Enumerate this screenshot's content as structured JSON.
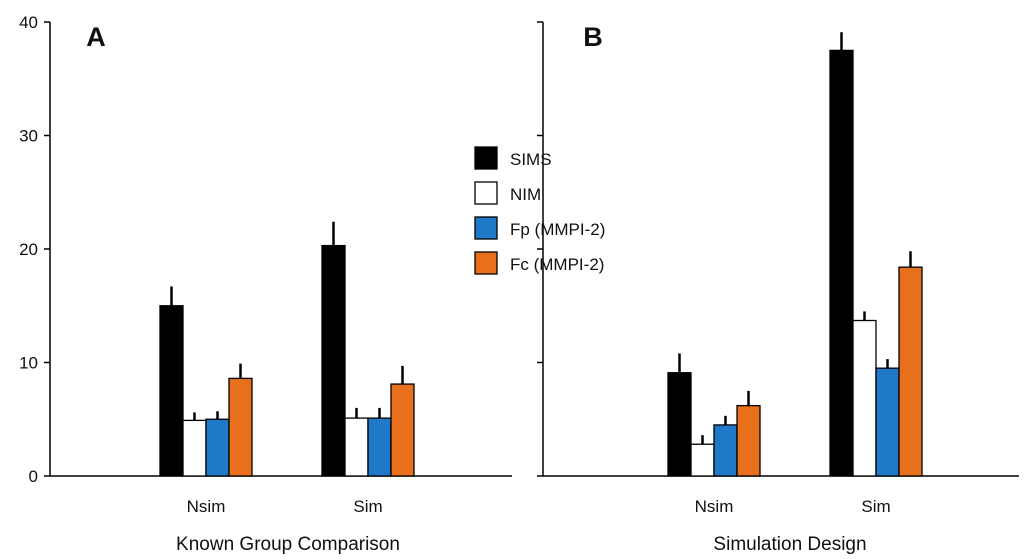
{
  "legend": {
    "items": [
      {
        "label": "SIMS",
        "color": "#000000"
      },
      {
        "label": "NIM",
        "color": "#ffffff"
      },
      {
        "label": "Fp (MMPI-2)",
        "color": "#1f78c8"
      },
      {
        "label": "Fc (MMPI-2)",
        "color": "#e8701c"
      }
    ]
  },
  "chart_data": [
    {
      "type": "bar",
      "panel_letter": "A",
      "xlabel": "Known Group Comparison",
      "ylabel": "",
      "ylim": [
        0,
        40
      ],
      "yticks": [
        0,
        10,
        20,
        30,
        40
      ],
      "categories": [
        "Nsim",
        "Sim"
      ],
      "series": [
        {
          "name": "SIMS",
          "color": "#000000",
          "values": [
            15.0,
            20.3
          ],
          "errors": [
            1.7,
            2.1
          ]
        },
        {
          "name": "NIM",
          "color": "#ffffff",
          "values": [
            4.9,
            5.1
          ],
          "errors": [
            0.7,
            0.9
          ]
        },
        {
          "name": "Fp (MMPI-2)",
          "color": "#1f78c8",
          "values": [
            5.0,
            5.1
          ],
          "errors": [
            0.7,
            0.9
          ]
        },
        {
          "name": "Fc (MMPI-2)",
          "color": "#e8701c",
          "values": [
            8.6,
            8.1
          ],
          "errors": [
            1.3,
            1.6
          ]
        }
      ],
      "legend": "right",
      "grid": false
    },
    {
      "type": "bar",
      "panel_letter": "B",
      "xlabel": "Simulation Design",
      "ylabel": "",
      "ylim": [
        0,
        40
      ],
      "categories": [
        "Nsim",
        "Sim"
      ],
      "series": [
        {
          "name": "SIMS",
          "color": "#000000",
          "values": [
            9.1,
            37.5
          ],
          "errors": [
            1.7,
            1.6
          ]
        },
        {
          "name": "NIM",
          "color": "#ffffff",
          "values": [
            2.8,
            13.7
          ],
          "errors": [
            0.8,
            0.8
          ]
        },
        {
          "name": "Fp (MMPI-2)",
          "color": "#1f78c8",
          "values": [
            4.5,
            9.5
          ],
          "errors": [
            0.8,
            0.8
          ]
        },
        {
          "name": "Fc (MMPI-2)",
          "color": "#e8701c",
          "values": [
            6.2,
            18.4
          ],
          "errors": [
            1.3,
            1.4
          ]
        }
      ],
      "grid": false
    }
  ]
}
